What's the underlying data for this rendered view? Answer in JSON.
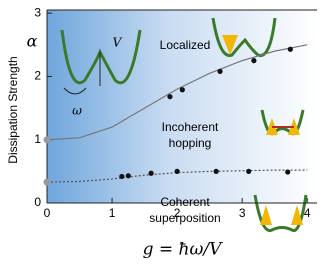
{
  "chart_data": {
    "type": "scatter",
    "x_label": "g = ħω/V",
    "y_label": "Dissipation Strength",
    "y_symbol": "α",
    "annotations": [
      "Localized",
      "Incoherent",
      "hopping",
      "Coherent",
      "superposition",
      "V",
      "ω"
    ],
    "xlim": [
      0,
      4.15
    ],
    "ylim": [
      0,
      3.05
    ],
    "xticks": [
      0,
      1,
      2,
      3,
      4
    ],
    "yticks": [
      0,
      1,
      2,
      3
    ],
    "series": [
      {
        "style": "line",
        "color": "#777777",
        "x": [
          0,
          0.5,
          1,
          1.5,
          2,
          2.5,
          3,
          3.5,
          4
        ],
        "values": [
          1,
          1.03,
          1.2,
          1.5,
          1.8,
          2.05,
          2.25,
          2.4,
          2.5
        ]
      },
      {
        "style": "dotted",
        "color": "#555555",
        "x": [
          0,
          0.5,
          1,
          1.5,
          2,
          2.5,
          3,
          3.5,
          4
        ],
        "values": [
          0.33,
          0.34,
          0.38,
          0.44,
          0.48,
          0.5,
          0.51,
          0.52,
          0.52
        ]
      },
      {
        "style": "points",
        "color": "#111111",
        "x": [
          0,
          1.89,
          2.08,
          2.66,
          3.18,
          3.74
        ],
        "values": [
          1,
          1.68,
          1.79,
          2.08,
          2.25,
          2.43
        ]
      },
      {
        "style": "points",
        "color": "#111111",
        "x": [
          0,
          1.15,
          1.25,
          1.6,
          2.0,
          2.6,
          3.1,
          3.7
        ],
        "values": [
          0.33,
          0.42,
          0.43,
          0.47,
          0.5,
          0.5,
          0.5,
          0.49
        ]
      }
    ]
  }
}
